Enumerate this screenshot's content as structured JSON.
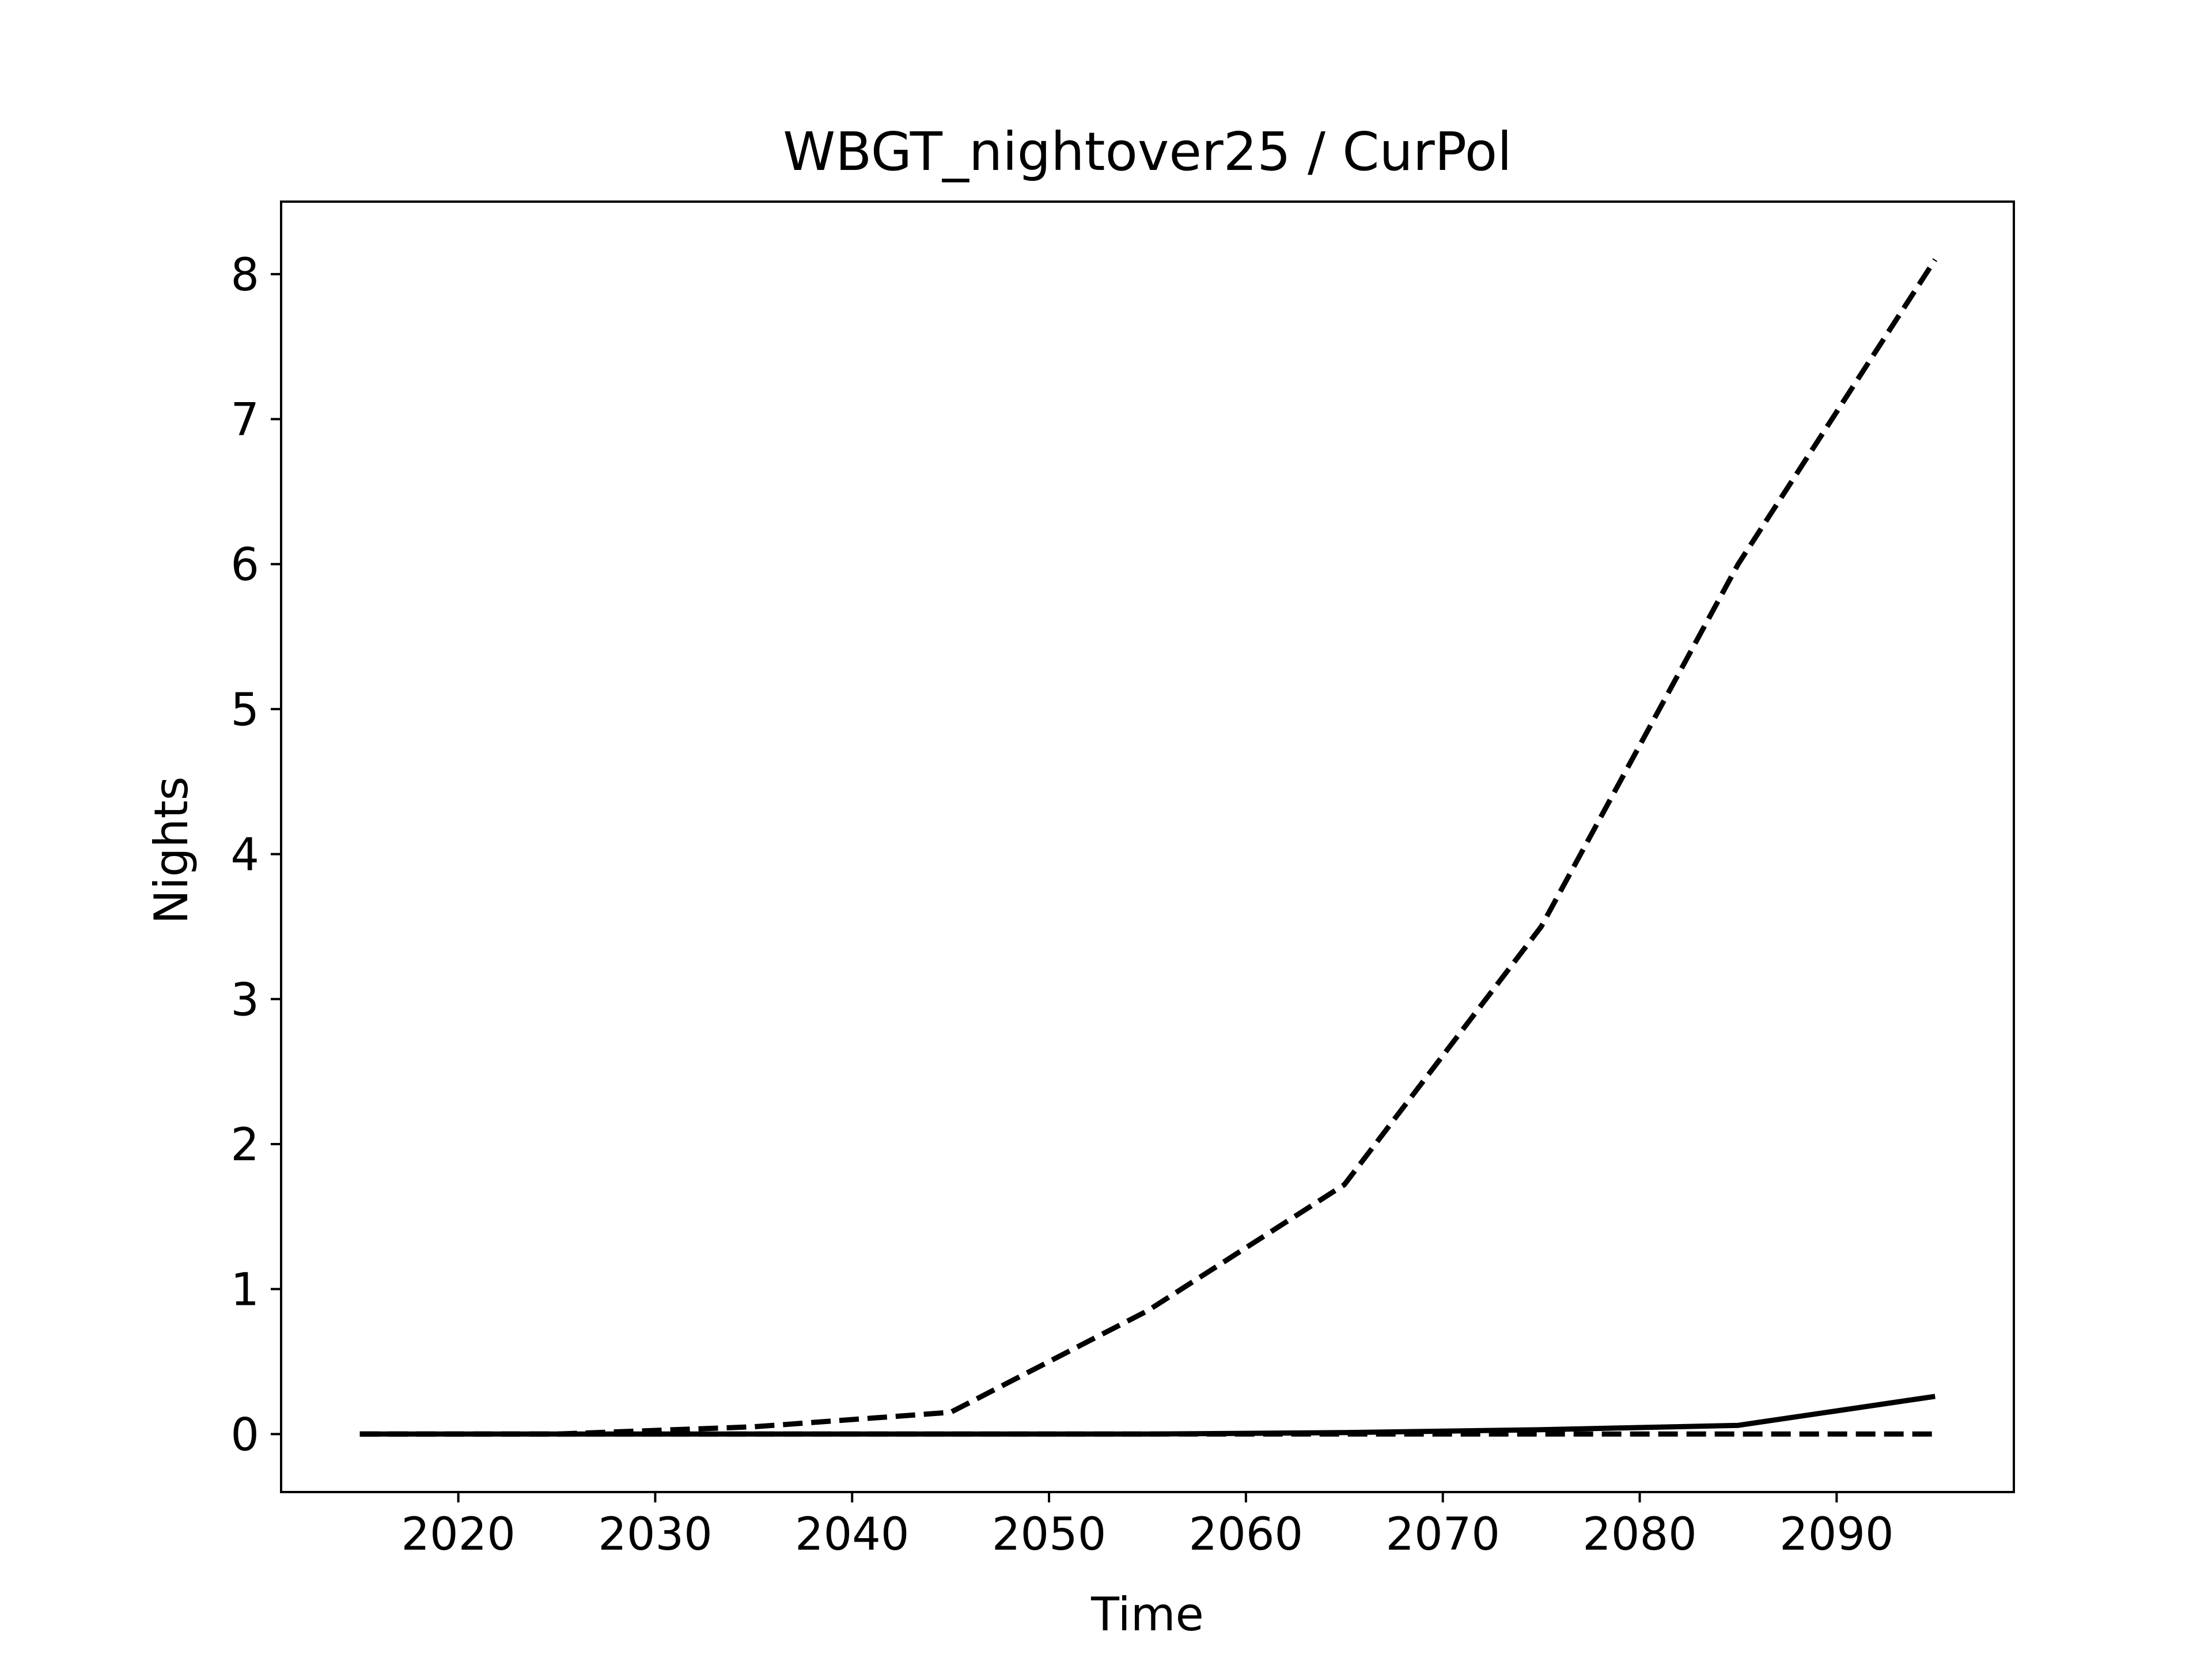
{
  "chart_data": {
    "type": "line",
    "title": "WBGT_nightover25 / CurPol",
    "xlabel": "Time",
    "ylabel": "Nights",
    "xlim": [
      2011,
      2099
    ],
    "ylim": [
      -0.4,
      8.5
    ],
    "xticks": [
      2020,
      2030,
      2040,
      2050,
      2060,
      2070,
      2080,
      2090
    ],
    "yticks": [
      0,
      1,
      2,
      3,
      4,
      5,
      6,
      7,
      8
    ],
    "x": [
      2015,
      2025,
      2035,
      2045,
      2055,
      2065,
      2075,
      2085,
      2095
    ],
    "series": [
      {
        "style": "solid",
        "color": "#000000",
        "values": [
          0,
          0,
          0,
          0,
          0,
          0.01,
          0.03,
          0.06,
          0.26
        ]
      },
      {
        "style": "dashed",
        "color": "#000000",
        "values": [
          0,
          0,
          0.05,
          0.15,
          0.85,
          1.72,
          3.5,
          6.0,
          8.1
        ]
      },
      {
        "style": "dashed",
        "color": "#000000",
        "values": [
          0,
          0,
          0,
          0,
          0,
          0,
          0,
          0,
          0
        ]
      }
    ],
    "grid": false,
    "legend": "none"
  }
}
